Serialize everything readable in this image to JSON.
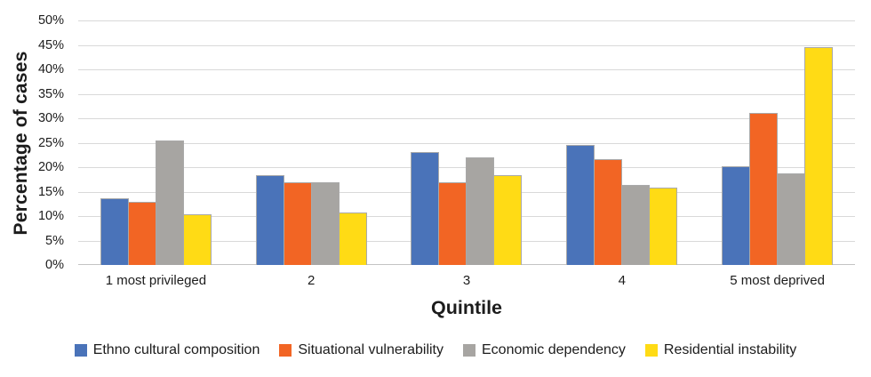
{
  "chart_data": {
    "type": "bar",
    "title": "",
    "xlabel": "Quintile",
    "ylabel": "Percentage of cases",
    "categories": [
      "1 most privileged",
      "2",
      "3",
      "4",
      "5 most deprived"
    ],
    "series": [
      {
        "name": "Ethno cultural composition",
        "color": "#4A73B9",
        "values": [
          13.6,
          18.3,
          23.1,
          24.5,
          20.2
        ]
      },
      {
        "name": "Situational vulnerability",
        "color": "#F26524",
        "values": [
          13.0,
          17.0,
          16.9,
          21.7,
          31.1
        ]
      },
      {
        "name": "Economic dependency",
        "color": "#A7A5A2",
        "values": [
          25.5,
          17.0,
          22.0,
          16.3,
          18.8
        ]
      },
      {
        "name": "Residential instability",
        "color": "#FFDB15",
        "values": [
          10.3,
          10.8,
          18.4,
          15.9,
          44.5
        ]
      }
    ],
    "ylim": [
      0,
      50
    ],
    "ytick_step": 5,
    "ytick_suffix": "%",
    "grid": true,
    "legend_position": "bottom"
  },
  "colors": {
    "gridline": "#d9d9d9",
    "baseline": "#c4c4c4",
    "bar_border": "#a9a9a9",
    "text": "#1c1c1c",
    "background": "#ffffff"
  }
}
